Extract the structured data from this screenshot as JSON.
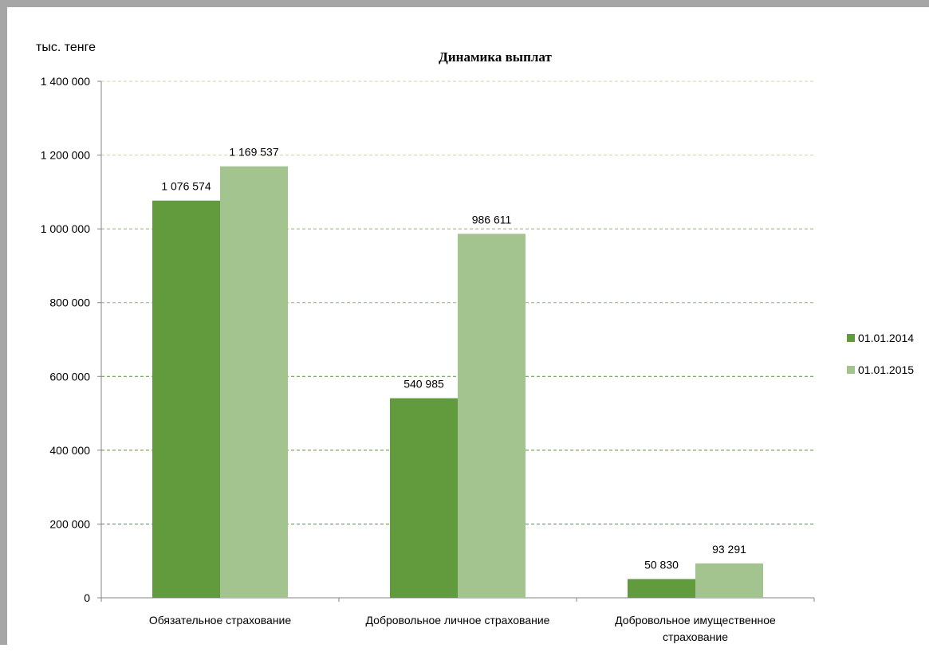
{
  "chart_data": {
    "type": "bar",
    "title": "Динамика выплат",
    "ylabel": "тыс. тенге",
    "xlabel": "",
    "ylim": [
      0,
      1400000
    ],
    "yticks": [
      0,
      200000,
      400000,
      600000,
      800000,
      1000000,
      1200000,
      1400000
    ],
    "ytick_labels": [
      "0",
      "200 000",
      "400 000",
      "600 000",
      "800 000",
      "1 000 000",
      "1 200 000",
      "1 400 000"
    ],
    "categories": [
      [
        "Обязательное страхование"
      ],
      [
        "Добровольное личное страхование"
      ],
      [
        "Добровольное имущественное",
        "страхование"
      ]
    ],
    "series": [
      {
        "name": "01.01.2014",
        "color": "#629b3d",
        "values": [
          1076574,
          540985,
          50830
        ],
        "labels": [
          "1 076 574",
          "540 985",
          "50 830"
        ]
      },
      {
        "name": "01.01.2015",
        "color": "#a3c48e",
        "values": [
          1169537,
          986611,
          93291
        ],
        "labels": [
          "1 169 537",
          "986 611",
          "93 291"
        ]
      }
    ],
    "grid": true,
    "legend_position": "right"
  }
}
